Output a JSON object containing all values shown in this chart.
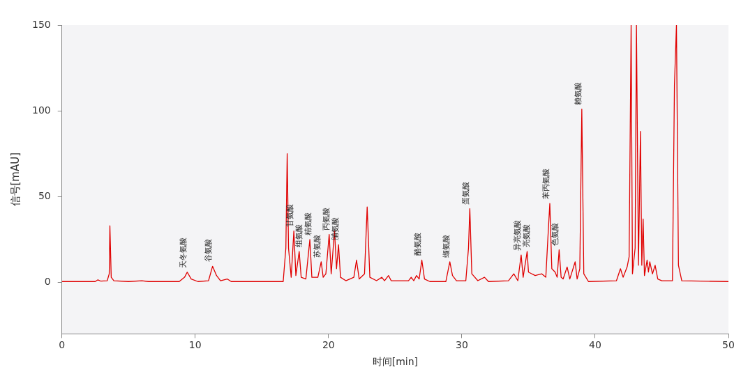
{
  "chart_data": {
    "type": "line",
    "xlabel": "时间[min]",
    "ylabel": "信号[mAU]",
    "xlim": [
      0,
      50
    ],
    "xticks": [
      0,
      10,
      20,
      30,
      40,
      50
    ],
    "ylim": [
      -30,
      150
    ],
    "yticks": [
      0,
      50,
      100,
      150
    ],
    "grid": false,
    "legend": false,
    "marker": "none",
    "line_style": "solid",
    "series": [
      {
        "color": "#e00000",
        "x": [
          0,
          2.5,
          2.7,
          2.9,
          3.4,
          3.55,
          3.6,
          3.7,
          3.9,
          5,
          6,
          6.5,
          8.8,
          9.2,
          9.4,
          9.7,
          10.2,
          11,
          11.3,
          11.6,
          11.9,
          12.4,
          12.7,
          16.6,
          16.8,
          16.9,
          17.0,
          17.2,
          17.4,
          17.55,
          17.8,
          17.95,
          18.3,
          18.6,
          18.75,
          19.2,
          19.45,
          19.6,
          19.8,
          20.05,
          20.2,
          20.45,
          20.6,
          20.75,
          20.9,
          21.3,
          21.9,
          22.1,
          22.3,
          22.7,
          22.9,
          23.1,
          23.6,
          24.0,
          24.2,
          24.5,
          24.7,
          26.0,
          26.2,
          26.4,
          26.6,
          26.8,
          27.0,
          27.2,
          27.6,
          28.8,
          29.1,
          29.3,
          29.6,
          30.3,
          30.5,
          30.6,
          30.75,
          31.2,
          31.7,
          32.0,
          33.5,
          33.9,
          34.2,
          34.45,
          34.6,
          34.9,
          35.0,
          35.5,
          36.0,
          36.3,
          36.45,
          36.6,
          36.75,
          37.0,
          37.15,
          37.3,
          37.45,
          37.6,
          37.9,
          38.1,
          38.5,
          38.65,
          38.85,
          39.0,
          39.15,
          39.5,
          41.6,
          41.9,
          42.1,
          42.4,
          42.55,
          42.7,
          42.8,
          43.0,
          43.1,
          43.25,
          43.4,
          43.5,
          43.6,
          43.7,
          43.9,
          44.0,
          44.1,
          44.3,
          44.5,
          44.7,
          45.0,
          45.8,
          45.95,
          46.1,
          46.25,
          46.5,
          50
        ],
        "values": [
          0.5,
          0.5,
          1.5,
          0.8,
          1,
          5,
          33,
          3,
          1,
          0.5,
          1,
          0.5,
          0.5,
          3,
          6,
          2,
          0.5,
          1,
          9.4,
          4,
          1,
          2,
          0.5,
          0.5,
          20,
          75,
          20,
          3,
          30,
          4,
          18,
          3,
          2,
          25,
          3,
          3,
          12,
          3,
          5,
          28,
          5,
          30,
          8,
          22,
          3,
          1,
          3,
          13,
          2,
          5,
          44,
          3,
          1,
          3,
          1,
          4,
          1,
          1,
          3,
          1,
          4,
          2,
          13,
          2,
          0.5,
          0.5,
          12,
          4,
          1,
          1,
          20,
          43,
          5,
          1,
          3,
          0.5,
          1,
          5,
          1,
          16,
          3,
          18,
          6,
          4,
          5,
          3,
          25,
          46,
          8,
          6,
          3,
          19,
          3,
          2,
          9,
          2,
          12,
          2,
          8,
          101,
          5,
          0.5,
          1,
          8,
          3,
          9,
          15,
          150,
          5,
          20,
          150,
          10,
          88,
          10,
          37,
          4,
          13,
          6,
          12,
          5,
          10,
          2,
          1,
          1,
          115,
          150,
          10,
          1,
          0.5
        ]
      }
    ],
    "annotations": [
      {
        "text": "天冬氨酸",
        "x": 9.4,
        "y": 6
      },
      {
        "text": "谷氨酸",
        "x": 11.3,
        "y": 9.4
      },
      {
        "text": "甘氨酸",
        "x": 17.4,
        "y": 30
      },
      {
        "text": "组氨酸",
        "x": 17.8,
        "y": 18
      },
      {
        "text": "精氨酸",
        "x": 18.6,
        "y": 25
      },
      {
        "text": "苏氨酸",
        "x": 19.45,
        "y": 12
      },
      {
        "text": "丙氨酸",
        "x": 20.05,
        "y": 28
      },
      {
        "text": "脯氨酸",
        "x": 20.75,
        "y": 22
      },
      {
        "text": "酪氨酸",
        "x": 27.0,
        "y": 13
      },
      {
        "text": "缬氨酸",
        "x": 29.1,
        "y": 12
      },
      {
        "text": "蛋氨酸",
        "x": 30.6,
        "y": 43
      },
      {
        "text": "异亮氨酸",
        "x": 34.45,
        "y": 16
      },
      {
        "text": "亮氨酸",
        "x": 34.9,
        "y": 18
      },
      {
        "text": "苯丙氨酸",
        "x": 36.6,
        "y": 46
      },
      {
        "text": "色氨酸",
        "x": 37.3,
        "y": 19
      },
      {
        "text": "赖氨酸",
        "x": 39.0,
        "y": 101
      }
    ]
  }
}
